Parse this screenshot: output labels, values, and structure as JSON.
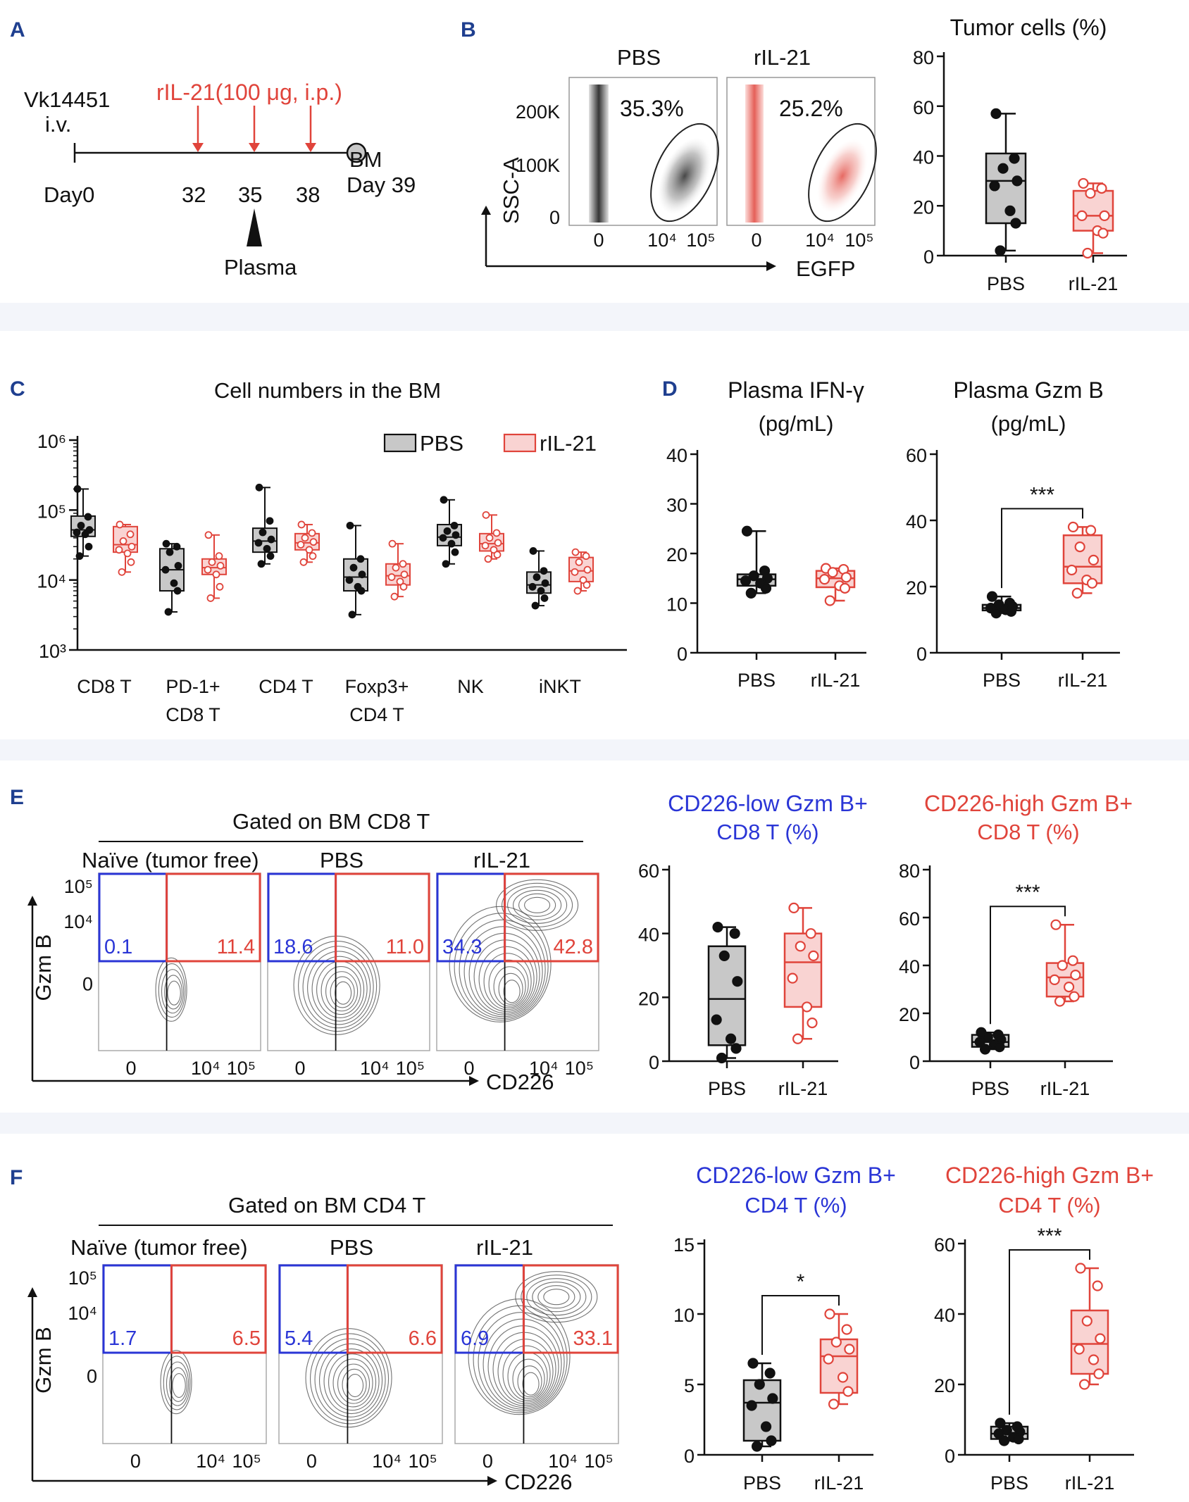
{
  "figure": {
    "panel_letters": [
      "A",
      "B",
      "C",
      "D",
      "E",
      "F"
    ]
  },
  "colors": {
    "pbs_fill": "#c8c8c8",
    "pbs_stroke": "#111111",
    "ril_fill": "#f9d3d2",
    "ril_stroke": "#e0443b",
    "red_text": "#e0443b",
    "blue_text": "#2a35d6"
  },
  "panel_a": {
    "cell_line": "Vk14451",
    "route": "i.v.",
    "treatment": "rIL-21(100 μg, i.p.)",
    "day0": "Day0",
    "days": [
      "32",
      "35",
      "38"
    ],
    "endpoint": "BM",
    "end_day": "Day 39",
    "plasma": "Plasma"
  },
  "panel_b": {
    "groups": [
      "PBS",
      "rIL-21"
    ],
    "gates": [
      "35.3%",
      "25.2%"
    ],
    "yaxis_label": "SSC-A",
    "xaxis_label": "EGFP",
    "y_ticks": [
      "200K",
      "100K",
      "0"
    ],
    "x_ticks": [
      "0",
      "10⁴",
      "10⁵"
    ]
  },
  "panel_e_flow": {
    "header": "Gated on BM CD8 T",
    "columns": [
      "Naïve (tumor free)",
      "PBS",
      "rIL-21"
    ],
    "low_values": [
      "0.1",
      "18.6",
      "34.3"
    ],
    "high_values": [
      "11.4",
      "11.0",
      "42.8"
    ],
    "yaxis_label": "Gzm B",
    "xaxis_label": "CD226",
    "y_ticks": [
      "10⁵",
      "10⁴",
      "0"
    ],
    "x_ticks": [
      "0",
      "10⁴",
      "10⁵"
    ]
  },
  "panel_f_flow": {
    "header": "Gated on BM CD4 T",
    "columns": [
      "Naïve (tumor free)",
      "PBS",
      "rIL-21"
    ],
    "low_values": [
      "1.7",
      "5.4",
      "6.9"
    ],
    "high_values": [
      "6.5",
      "6.6",
      "33.1"
    ],
    "yaxis_label": "Gzm B",
    "xaxis_label": "CD226",
    "y_ticks": [
      "10⁵",
      "10⁴",
      "0"
    ],
    "x_ticks": [
      "0",
      "10⁴",
      "10⁵"
    ]
  },
  "chart_data": [
    {
      "id": "b_tumor",
      "type": "box",
      "title": "Tumor cells (%)",
      "categories": [
        "PBS",
        "rIL-21"
      ],
      "ylim": [
        0,
        80
      ],
      "yticks": [
        0,
        20,
        40,
        60,
        80
      ],
      "boxes": [
        {
          "min": 2,
          "q1": 13,
          "median": 30,
          "q3": 41,
          "max": 57,
          "points": [
            57,
            39,
            35,
            30,
            28,
            18,
            13,
            2
          ]
        },
        {
          "min": 1,
          "q1": 10,
          "median": 16,
          "q3": 26,
          "max": 29,
          "points": [
            29,
            27,
            25,
            16,
            16,
            10,
            9,
            1
          ]
        }
      ]
    },
    {
      "id": "c_cells",
      "type": "grouped-box-log",
      "title": "Cell numbers in the BM",
      "categories": [
        "CD8 T",
        "PD-1+\nCD8 T",
        "CD4 T",
        "Foxp3+\nCD4 T",
        "NK",
        "iNKT"
      ],
      "legend": [
        "PBS",
        "rIL-21"
      ],
      "ylim": [
        1000,
        1000000
      ],
      "yticklabels": [
        "10³",
        "10⁴",
        "10⁵",
        "10⁶"
      ],
      "series": [
        {
          "name": "PBS",
          "boxes": [
            {
              "min": 22000,
              "q1": 42000,
              "median": 52000,
              "q3": 82000,
              "max": 200000,
              "points": [
                200000,
                80000,
                60000,
                52000,
                48000,
                45000,
                30000,
                22000
              ]
            },
            {
              "min": 3500,
              "q1": 7000,
              "median": 14000,
              "q3": 28000,
              "max": 33000,
              "points": [
                33000,
                30000,
                25000,
                16000,
                14000,
                9000,
                7000,
                3500
              ]
            },
            {
              "min": 17000,
              "q1": 25000,
              "median": 36000,
              "q3": 55000,
              "max": 210000,
              "points": [
                210000,
                70000,
                48000,
                38000,
                34000,
                28000,
                22000,
                17000
              ]
            },
            {
              "min": 3200,
              "q1": 7000,
              "median": 11000,
              "q3": 20000,
              "max": 60000,
              "points": [
                60000,
                20000,
                15000,
                12000,
                10000,
                8000,
                7000,
                3200
              ]
            },
            {
              "min": 17000,
              "q1": 31000,
              "median": 41000,
              "q3": 62000,
              "max": 140000,
              "points": [
                140000,
                60000,
                50000,
                44000,
                40000,
                33000,
                25000,
                17000
              ]
            },
            {
              "min": 4300,
              "q1": 6500,
              "median": 8500,
              "q3": 13000,
              "max": 26000,
              "points": [
                26000,
                13500,
                11000,
                9000,
                8000,
                7000,
                5500,
                4300
              ]
            }
          ]
        },
        {
          "name": "rIL-21",
          "boxes": [
            {
              "min": 13000,
              "q1": 25000,
              "median": 32000,
              "q3": 58000,
              "max": 62000,
              "points": [
                62000,
                45000,
                36000,
                30000,
                27000,
                24000,
                18000,
                13000
              ]
            },
            {
              "min": 5500,
              "q1": 12000,
              "median": 15000,
              "q3": 20000,
              "max": 44000,
              "points": [
                44000,
                22000,
                18000,
                16000,
                14000,
                12000,
                8000,
                5500
              ]
            },
            {
              "min": 18000,
              "q1": 27000,
              "median": 34000,
              "q3": 46000,
              "max": 62000,
              "points": [
                62000,
                47000,
                40000,
                35000,
                32000,
                27000,
                22000,
                18000
              ]
            },
            {
              "min": 5800,
              "q1": 8500,
              "median": 11500,
              "q3": 17000,
              "max": 33000,
              "points": [
                33000,
                17000,
                15000,
                12000,
                11000,
                9500,
                8000,
                5800
              ]
            },
            {
              "min": 20000,
              "q1": 26000,
              "median": 33000,
              "q3": 46000,
              "max": 85000,
              "points": [
                85000,
                47000,
                40000,
                34000,
                31000,
                27000,
                23000,
                20000
              ]
            },
            {
              "min": 7000,
              "q1": 9500,
              "median": 13500,
              "q3": 21000,
              "max": 25000,
              "points": [
                25000,
                22000,
                18000,
                14000,
                13000,
                10000,
                8500,
                7000
              ]
            }
          ]
        }
      ]
    },
    {
      "id": "d_ifn",
      "type": "box",
      "title": "Plasma IFN-γ",
      "subtitle": "(pg/mL)",
      "categories": [
        "PBS",
        "rIL-21"
      ],
      "ylim": [
        0,
        40
      ],
      "yticks": [
        0,
        10,
        20,
        30,
        40
      ],
      "boxes": [
        {
          "min": 12,
          "q1": 13.5,
          "median": 14.8,
          "q3": 15.8,
          "max": 24.5,
          "points": [
            24.5,
            16.5,
            15.5,
            15,
            14.5,
            14,
            13,
            12
          ]
        },
        {
          "min": 10.5,
          "q1": 13.2,
          "median": 15,
          "q3": 16.5,
          "max": 17,
          "points": [
            17,
            16.8,
            16.2,
            15.2,
            14.8,
            13.5,
            13,
            10.5
          ]
        }
      ]
    },
    {
      "id": "d_gzmb",
      "type": "box",
      "title": "Plasma Gzm B",
      "subtitle": "(pg/mL)",
      "categories": [
        "PBS",
        "rIL-21"
      ],
      "ylim": [
        0,
        60
      ],
      "yticks": [
        0,
        20,
        40,
        60
      ],
      "significance": "***",
      "boxes": [
        {
          "min": 12,
          "q1": 12.8,
          "median": 13.5,
          "q3": 14.5,
          "max": 17,
          "points": [
            17,
            15,
            14.5,
            14,
            13.5,
            13,
            12.5,
            12
          ]
        },
        {
          "min": 18,
          "q1": 21,
          "median": 26,
          "q3": 35.5,
          "max": 38,
          "points": [
            38,
            37,
            32,
            28,
            25,
            22,
            21,
            18
          ]
        }
      ]
    },
    {
      "id": "e_low",
      "type": "box",
      "title": "CD226-low Gzm B+",
      "subtitle": "CD8 T (%)",
      "title_color": "#2a35d6",
      "categories": [
        "PBS",
        "rIL-21"
      ],
      "ylim": [
        0,
        60
      ],
      "yticks": [
        0,
        20,
        40,
        60
      ],
      "boxes": [
        {
          "min": 1,
          "q1": 5,
          "median": 19.5,
          "q3": 36,
          "max": 42,
          "points": [
            42,
            40,
            33,
            25,
            13,
            7,
            4,
            1
          ]
        },
        {
          "min": 7,
          "q1": 17,
          "median": 31,
          "q3": 40,
          "max": 48,
          "points": [
            48,
            40,
            36,
            33,
            26,
            17,
            12,
            7
          ]
        }
      ]
    },
    {
      "id": "e_high",
      "type": "box",
      "title": "CD226-high Gzm B+",
      "subtitle": "CD8 T (%)",
      "title_color": "#e0443b",
      "categories": [
        "PBS",
        "rIL-21"
      ],
      "ylim": [
        0,
        80
      ],
      "yticks": [
        0,
        20,
        40,
        60,
        80
      ],
      "significance": "***",
      "boxes": [
        {
          "min": 5,
          "q1": 6,
          "median": 8,
          "q3": 11,
          "max": 12,
          "points": [
            12,
            11,
            10,
            9,
            8,
            7,
            6,
            5
          ]
        },
        {
          "min": 25,
          "q1": 27,
          "median": 35,
          "q3": 41,
          "max": 57,
          "points": [
            57,
            42,
            40,
            36,
            34,
            31,
            27,
            25
          ]
        }
      ]
    },
    {
      "id": "f_low",
      "type": "box",
      "title": "CD226-low Gzm B+",
      "subtitle": "CD4 T (%)",
      "title_color": "#2a35d6",
      "categories": [
        "PBS",
        "rIL-21"
      ],
      "ylim": [
        0,
        15
      ],
      "yticks": [
        0,
        5,
        10,
        15
      ],
      "significance": "*",
      "boxes": [
        {
          "min": 0.6,
          "q1": 1,
          "median": 3.7,
          "q3": 5.3,
          "max": 6.5,
          "points": [
            6.5,
            5.8,
            5,
            4,
            3.5,
            2,
            1,
            0.6
          ]
        },
        {
          "min": 3.6,
          "q1": 4.4,
          "median": 7,
          "q3": 8.2,
          "max": 10,
          "points": [
            10,
            8.9,
            8,
            7.5,
            6.8,
            5.5,
            4.5,
            3.6
          ]
        }
      ]
    },
    {
      "id": "f_high",
      "type": "box",
      "title": "CD226-high Gzm B+",
      "subtitle": "CD4 T (%)",
      "title_color": "#e0443b",
      "categories": [
        "PBS",
        "rIL-21"
      ],
      "ylim": [
        0,
        60
      ],
      "yticks": [
        0,
        20,
        40,
        60
      ],
      "significance": "***",
      "boxes": [
        {
          "min": 4,
          "q1": 4.5,
          "median": 6,
          "q3": 8,
          "max": 9,
          "points": [
            9,
            8,
            7,
            6.5,
            6,
            5,
            4.5,
            4
          ]
        },
        {
          "min": 20,
          "q1": 23,
          "median": 31.5,
          "q3": 41,
          "max": 53,
          "points": [
            53,
            48,
            38,
            33,
            30,
            27,
            23,
            20
          ]
        }
      ]
    }
  ]
}
